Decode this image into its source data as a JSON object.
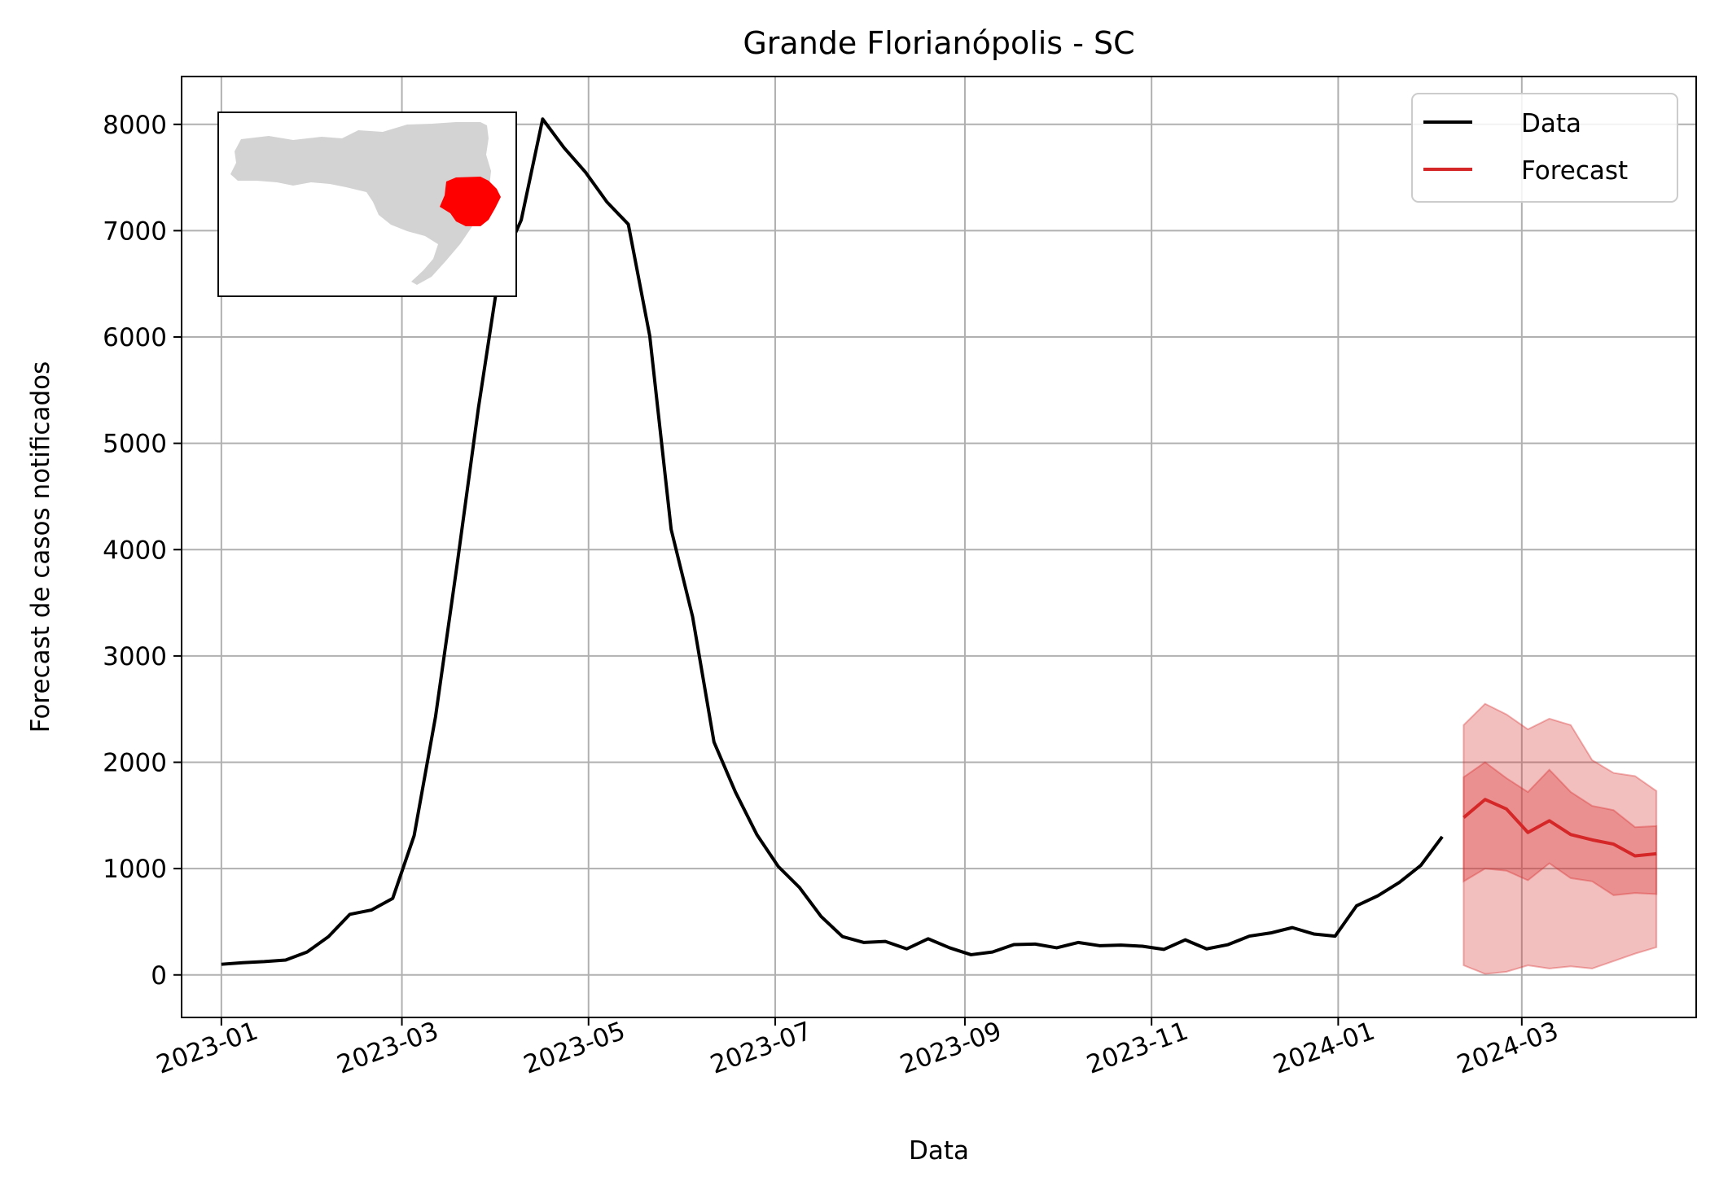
{
  "chart_data": {
    "type": "line",
    "title": "Grande Florianópolis - SC",
    "xlabel": "Data",
    "ylabel": "Forecast de casos notificados",
    "ylim": [
      -400,
      8450
    ],
    "xlim": [
      "2022-12-19",
      "2024-04-27"
    ],
    "grid": true,
    "legend_position": "top-right",
    "x_ticks": [
      "2023-01-01",
      "2023-03-01",
      "2023-05-01",
      "2023-07-01",
      "2023-09-01",
      "2023-11-01",
      "2024-01-01",
      "2024-03-01"
    ],
    "x_tick_labels": [
      "2023-01",
      "2023-03",
      "2023-05",
      "2023-07",
      "2023-09",
      "2023-11",
      "2024-01",
      "2024-03"
    ],
    "y_ticks": [
      0,
      1000,
      2000,
      3000,
      4000,
      5000,
      6000,
      7000,
      8000
    ],
    "colors": {
      "data": "#000000",
      "forecast": "#d62728",
      "band": "#d62728",
      "grid": "#b0b0b0"
    },
    "series": [
      {
        "name": "Data",
        "color": "#000000",
        "points": [
          [
            "2023-01-01",
            100
          ],
          [
            "2023-01-08",
            115
          ],
          [
            "2023-01-15",
            125
          ],
          [
            "2023-01-22",
            140
          ],
          [
            "2023-01-29",
            215
          ],
          [
            "2023-02-05",
            360
          ],
          [
            "2023-02-12",
            570
          ],
          [
            "2023-02-19",
            610
          ],
          [
            "2023-02-26",
            720
          ],
          [
            "2023-03-05",
            1310
          ],
          [
            "2023-03-12",
            2430
          ],
          [
            "2023-03-19",
            3850
          ],
          [
            "2023-03-26",
            5330
          ],
          [
            "2023-04-02",
            6650
          ],
          [
            "2023-04-09",
            7100
          ],
          [
            "2023-04-16",
            8050
          ],
          [
            "2023-04-23",
            7780
          ],
          [
            "2023-04-30",
            7550
          ],
          [
            "2023-05-07",
            7270
          ],
          [
            "2023-05-14",
            7060
          ],
          [
            "2023-05-21",
            6010
          ],
          [
            "2023-05-28",
            4190
          ],
          [
            "2023-06-04",
            3370
          ],
          [
            "2023-06-11",
            2190
          ],
          [
            "2023-06-18",
            1720
          ],
          [
            "2023-06-25",
            1320
          ],
          [
            "2023-07-02",
            1020
          ],
          [
            "2023-07-09",
            820
          ],
          [
            "2023-07-16",
            550
          ],
          [
            "2023-07-23",
            360
          ],
          [
            "2023-07-30",
            305
          ],
          [
            "2023-08-06",
            315
          ],
          [
            "2023-08-13",
            245
          ],
          [
            "2023-08-20",
            340
          ],
          [
            "2023-08-27",
            255
          ],
          [
            "2023-09-03",
            190
          ],
          [
            "2023-09-10",
            215
          ],
          [
            "2023-09-17",
            285
          ],
          [
            "2023-09-24",
            290
          ],
          [
            "2023-10-01",
            255
          ],
          [
            "2023-10-08",
            305
          ],
          [
            "2023-10-15",
            275
          ],
          [
            "2023-10-22",
            280
          ],
          [
            "2023-10-29",
            270
          ],
          [
            "2023-11-05",
            240
          ],
          [
            "2023-11-12",
            330
          ],
          [
            "2023-11-19",
            245
          ],
          [
            "2023-11-26",
            285
          ],
          [
            "2023-12-03",
            365
          ],
          [
            "2023-12-10",
            395
          ],
          [
            "2023-12-17",
            445
          ],
          [
            "2023-12-24",
            385
          ],
          [
            "2023-12-31",
            365
          ],
          [
            "2024-01-07",
            650
          ],
          [
            "2024-01-14",
            745
          ],
          [
            "2024-01-21",
            870
          ],
          [
            "2024-01-28",
            1030
          ],
          [
            "2024-02-04",
            1300
          ]
        ]
      },
      {
        "name": "Forecast",
        "color": "#d62728",
        "points": [
          [
            "2024-02-11",
            1480
          ],
          [
            "2024-02-18",
            1650
          ],
          [
            "2024-02-25",
            1560
          ],
          [
            "2024-03-03",
            1340
          ],
          [
            "2024-03-10",
            1450
          ],
          [
            "2024-03-17",
            1320
          ],
          [
            "2024-03-24",
            1270
          ],
          [
            "2024-03-31",
            1230
          ],
          [
            "2024-04-07",
            1120
          ],
          [
            "2024-04-14",
            1140
          ]
        ],
        "inner_band": {
          "lower": [
            880,
            1000,
            980,
            890,
            1050,
            910,
            880,
            750,
            770,
            760
          ],
          "upper": [
            1860,
            2000,
            1850,
            1720,
            1930,
            1720,
            1590,
            1550,
            1390,
            1400
          ]
        },
        "outer_band": {
          "lower": [
            90,
            10,
            30,
            90,
            60,
            80,
            60,
            130,
            200,
            260
          ],
          "upper": [
            2350,
            2550,
            2450,
            2310,
            2410,
            2350,
            2020,
            1900,
            1870,
            1730
          ]
        }
      }
    ],
    "inset_map": {
      "description_colors": {
        "state": "#d3d3d3",
        "highlight": "#ff0000"
      }
    }
  }
}
